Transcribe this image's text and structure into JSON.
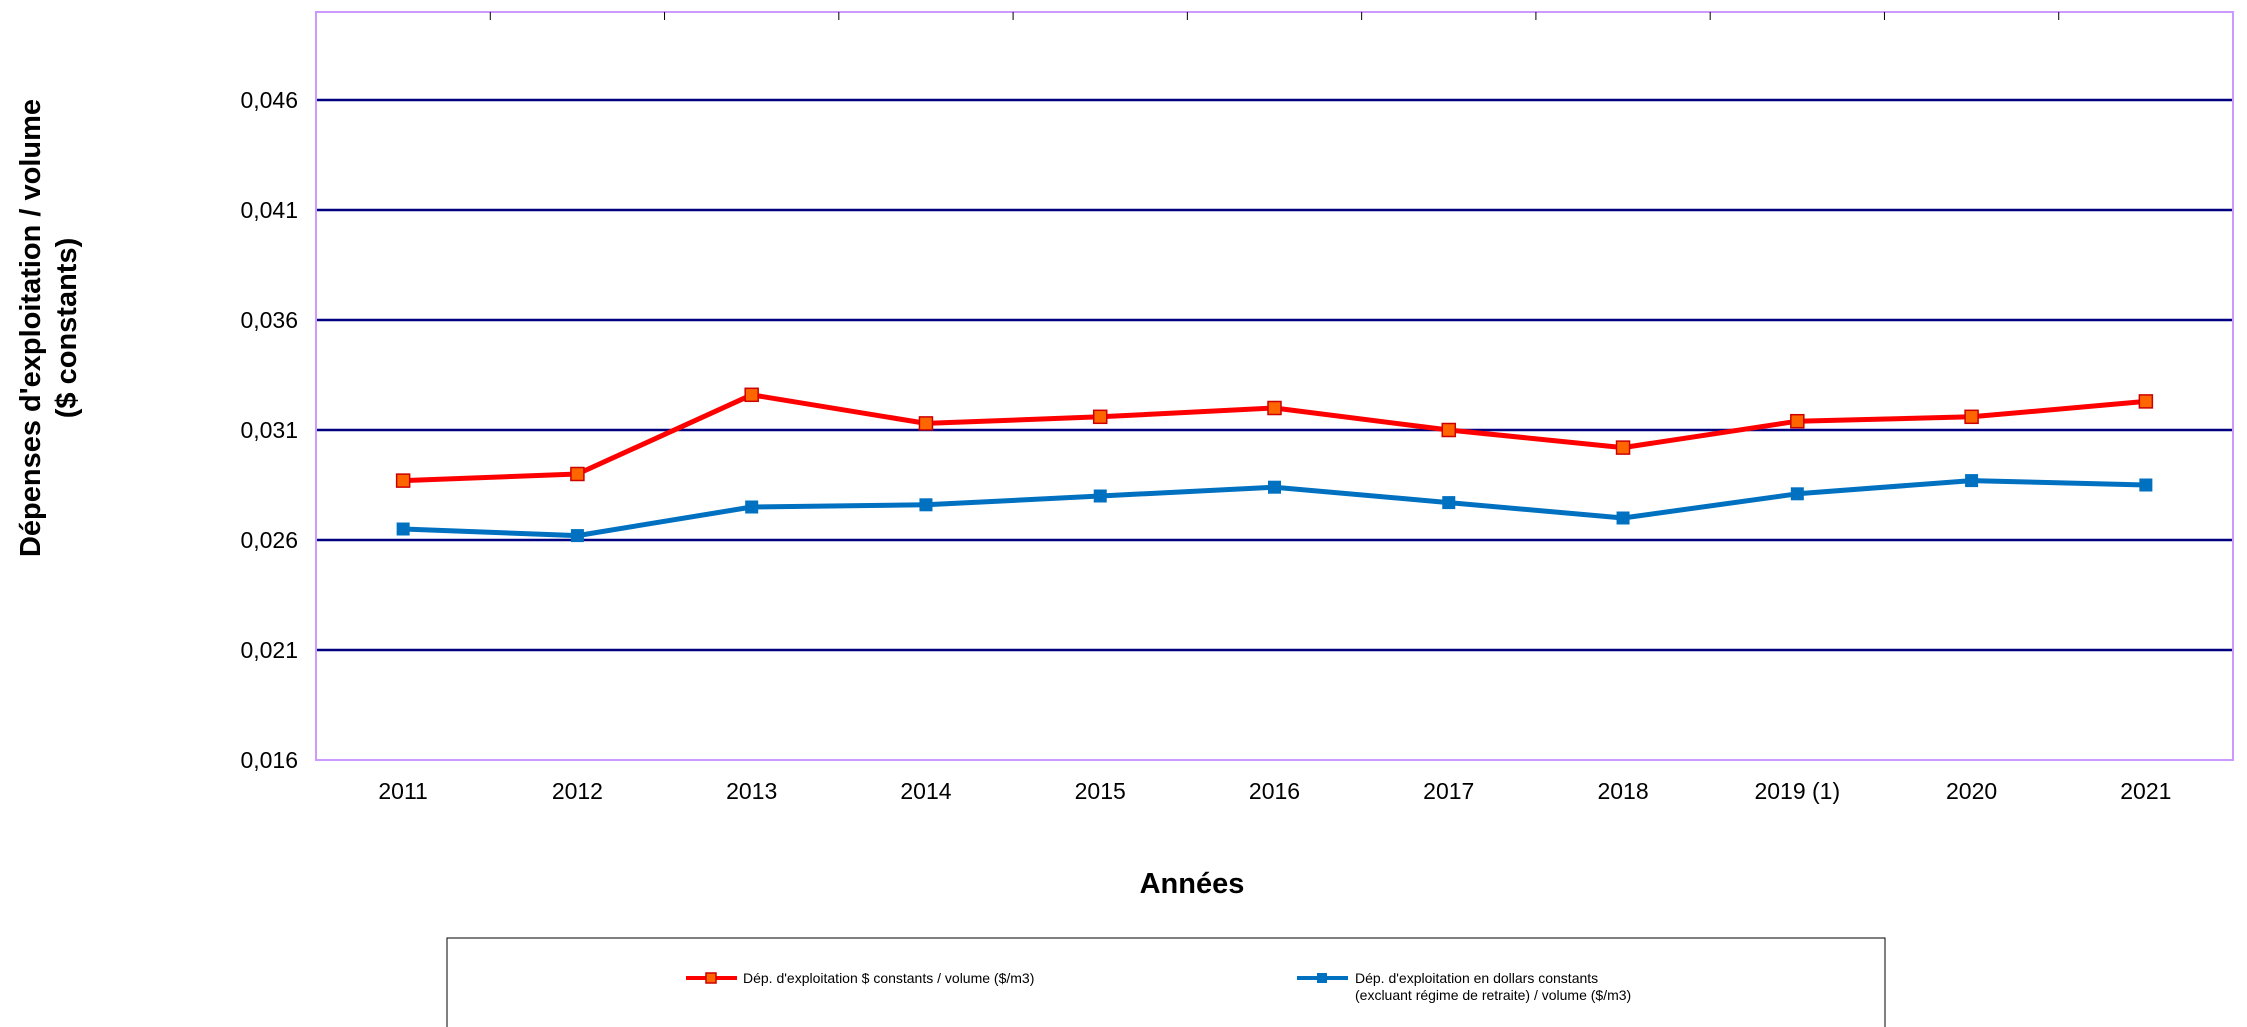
{
  "chart_data": {
    "type": "line",
    "title": "",
    "xlabel": "Années",
    "ylabel_lines": [
      "Dépenses d'exploitation / volume",
      "($ constants)"
    ],
    "categories": [
      "2011",
      "2012",
      "2013",
      "2014",
      "2015",
      "2016",
      "2017",
      "2018",
      "2019 (1)",
      "2020",
      "2021"
    ],
    "ylim": [
      0.016,
      0.05
    ],
    "yticks": [
      0.016,
      0.021,
      0.026,
      0.031,
      0.036,
      0.041,
      0.046
    ],
    "ytick_labels": [
      "0,016",
      "0,021",
      "0,026",
      "0,031",
      "0,036",
      "0,041",
      "0,046"
    ],
    "grid": true,
    "legend_position": "bottom",
    "series": [
      {
        "name": "Dép. d'exploitation $ constants / volume ($/m3)",
        "name_lines": [
          "Dép. d'exploitation $ constants / volume ($/m3)"
        ],
        "color": "#ff0000",
        "marker_color": "#ff6600",
        "values": [
          0.0287,
          0.029,
          0.0326,
          0.0313,
          0.0316,
          0.032,
          0.031,
          0.0302,
          0.0314,
          0.0316,
          0.0323
        ]
      },
      {
        "name": "Dép. d'exploitation en dollars constants (excluant régime de retraite) / volume ($/m3)",
        "name_lines": [
          "Dép. d'exploitation en dollars constants",
          "(excluant régime de retraite) / volume ($/m3)"
        ],
        "color": "#0070c0",
        "marker_color": "#0070c0",
        "values": [
          0.0265,
          0.0262,
          0.0275,
          0.0276,
          0.028,
          0.0284,
          0.0277,
          0.027,
          0.0281,
          0.0287,
          0.0285
        ]
      }
    ]
  }
}
